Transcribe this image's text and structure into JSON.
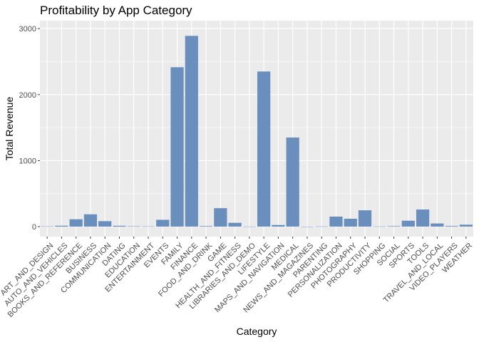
{
  "chart_data": {
    "type": "bar",
    "title": "Profitability by App Category",
    "xlabel": "Category",
    "ylabel": "Total Revenue",
    "ylim": [
      -150,
      3120
    ],
    "yticks": [
      0,
      1000,
      2000,
      3000
    ],
    "ytick_labels": [
      "0",
      "1000",
      "2000",
      "3000"
    ],
    "grid": true,
    "bar_color": "#6a8fbd",
    "panel_color": "#ebebeb",
    "grid_color": "#ffffff",
    "categories": [
      "ART_AND_DESIGN",
      "AUTO_AND_VEHICLES",
      "BOOKS_AND_REFERENCE",
      "BUSINESS",
      "COMMUNICATION",
      "DATING",
      "EDUCATION",
      "ENTERTAINMENT",
      "EVENTS",
      "FAMILY",
      "FINANCE",
      "FOOD_AND_DRINK",
      "GAME",
      "HEALTH_AND_FITNESS",
      "LIBRARIES_AND_DEMO",
      "LIFESTYLE",
      "MAPS_AND_NAVIGATION",
      "MEDICAL",
      "NEWS_AND_MAGAZINES",
      "PARENTING",
      "PERSONALIZATION",
      "PHOTOGRAPHY",
      "PRODUCTIVITY",
      "SHOPPING",
      "SOCIAL",
      "SPORTS",
      "TOOLS",
      "TRAVEL_AND_LOCAL",
      "VIDEO_PLAYERS",
      "WEATHER"
    ],
    "values": [
      5,
      14,
      112,
      187,
      83,
      13,
      6,
      5,
      104,
      2415,
      2890,
      9,
      280,
      58,
      2,
      2350,
      25,
      1350,
      1,
      4,
      152,
      120,
      248,
      4,
      8,
      90,
      260,
      48,
      10,
      30
    ]
  }
}
